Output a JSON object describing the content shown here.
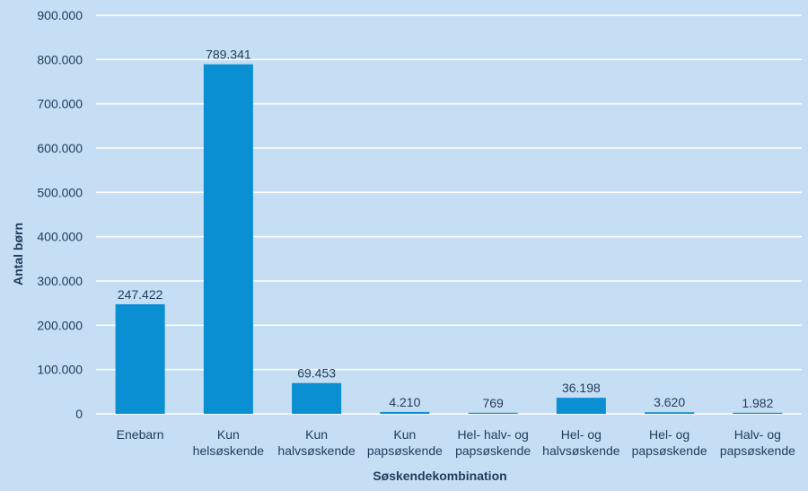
{
  "chart_data": {
    "type": "bar",
    "xlabel": "Søskendekombination",
    "ylabel": "Antal børn",
    "ylim": [
      0,
      900000
    ],
    "ytick_step": 100000,
    "yticks": [
      "0",
      "100.000",
      "200.000",
      "300.000",
      "400.000",
      "500.000",
      "600.000",
      "700.000",
      "800.000",
      "900.000"
    ],
    "grid": true,
    "bar_color": "#0a8fd3",
    "background_color": "#c6def3",
    "categories": [
      [
        "Enebarn"
      ],
      [
        "Kun",
        "helsøskende"
      ],
      [
        "Kun",
        "halvsøskende"
      ],
      [
        "Kun",
        "papsøskende"
      ],
      [
        "Hel- halv- og",
        "papsøskende"
      ],
      [
        "Hel- og",
        "halvsøskende"
      ],
      [
        "Hel- og",
        "papsøskende"
      ],
      [
        "Halv- og",
        "papsøskende"
      ]
    ],
    "values": [
      247422,
      789341,
      69453,
      4210,
      769,
      36198,
      3620,
      1982
    ],
    "data_labels": [
      "247.422",
      "789.341",
      "69.453",
      "4.210",
      "769",
      "36.198",
      "3.620",
      "1.982"
    ]
  }
}
